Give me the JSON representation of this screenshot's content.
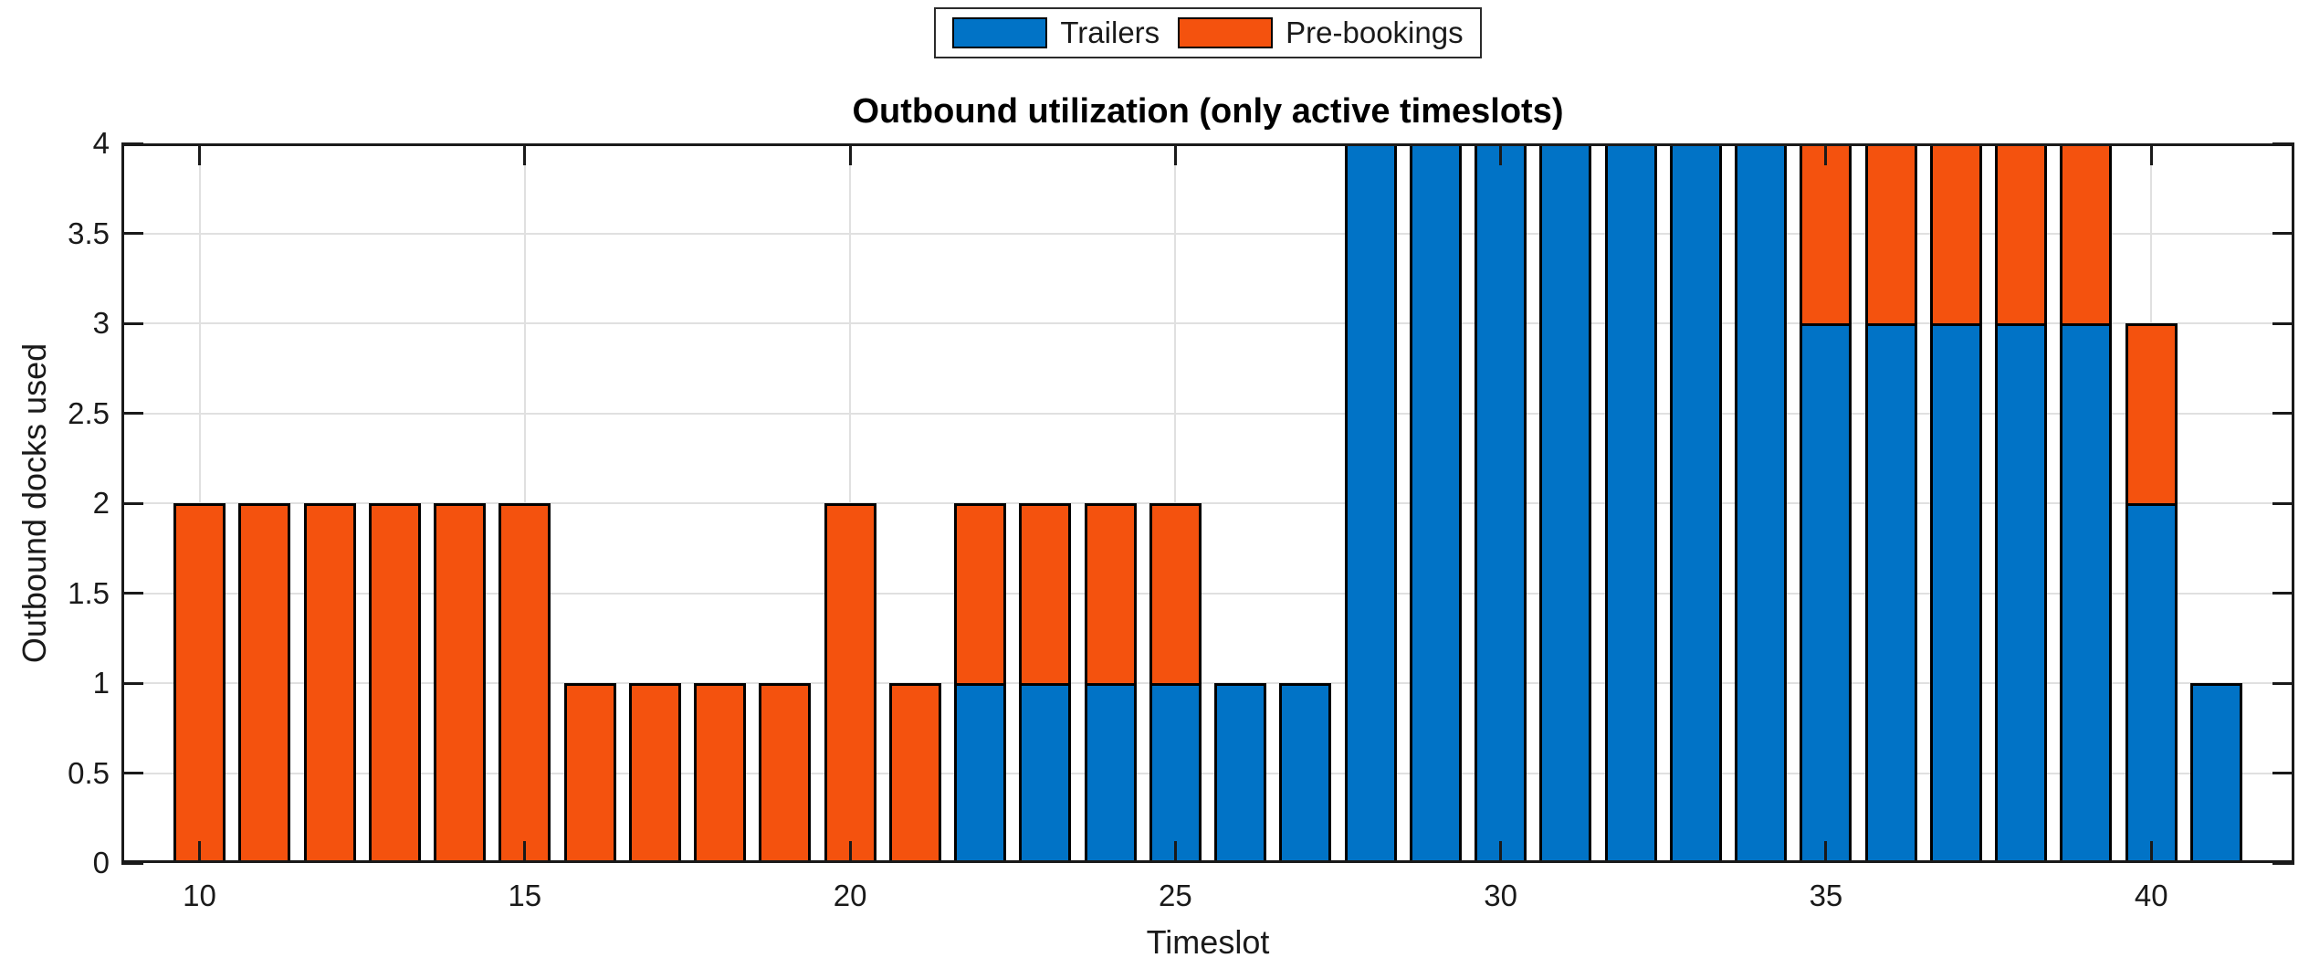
{
  "chart_data": {
    "type": "bar",
    "stacked": true,
    "title": "Outbound utilization (only active timeslots)",
    "xlabel": "Timeslot",
    "ylabel": "Outbound docks used",
    "categories": [
      10,
      11,
      12,
      13,
      14,
      15,
      16,
      17,
      18,
      19,
      20,
      21,
      22,
      23,
      24,
      25,
      26,
      27,
      28,
      29,
      30,
      31,
      32,
      33,
      34,
      35,
      36,
      37,
      38,
      39,
      40,
      41
    ],
    "series": [
      {
        "name": "Trailers",
        "color": "#0173C6",
        "values": [
          0,
          0,
          0,
          0,
          0,
          0,
          0,
          0,
          0,
          0,
          0,
          0,
          1,
          1,
          1,
          1,
          1,
          1,
          4,
          4,
          4,
          4,
          4,
          4,
          4,
          3,
          3,
          3,
          3,
          3,
          2,
          1
        ]
      },
      {
        "name": "Pre-bookings",
        "color": "#F4520E",
        "values": [
          2,
          2,
          2,
          2,
          2,
          2,
          1,
          1,
          1,
          1,
          2,
          1,
          1,
          1,
          1,
          1,
          0,
          0,
          0,
          0,
          0,
          0,
          0,
          0,
          0,
          1,
          1,
          1,
          1,
          1,
          1,
          0
        ]
      }
    ],
    "bar_width": 0.8,
    "bar_edge_color": "#000000",
    "xlim": [
      8.8,
      42.2
    ],
    "ylim": [
      0,
      4
    ],
    "xticks": [
      10,
      15,
      20,
      25,
      30,
      35,
      40
    ],
    "yticks": [
      0,
      0.5,
      1,
      1.5,
      2,
      2.5,
      3,
      3.5,
      4
    ],
    "grid": true,
    "legend_position": "top-center-outside",
    "axis_color": "#1A1A1A",
    "grid_color": "#E0E0E0",
    "background": "#FFFFFF"
  }
}
